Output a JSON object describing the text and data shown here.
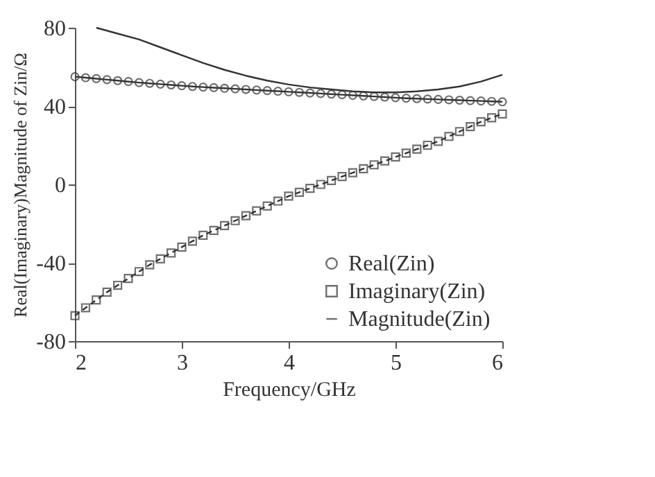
{
  "chart_data": {
    "type": "line",
    "xlabel": "Frequency/GHz",
    "ylabel": "Real(Imaginary)Magnitude of Zin/Ω",
    "xlim": [
      2,
      6
    ],
    "xticks": [
      2,
      3,
      4,
      5,
      6
    ],
    "ylim": [
      -80,
      80
    ],
    "yticks": [
      -80,
      -40,
      0,
      40,
      80
    ],
    "grid": false,
    "legend": "bottom right",
    "series": [
      {
        "name": "Real(Zin)",
        "color": "#333333",
        "marker": "circle",
        "line_style": "solid",
        "x": [
          2.0,
          2.1,
          2.2,
          2.3,
          2.4,
          2.5,
          2.6,
          2.7,
          2.8,
          2.9,
          3.0,
          3.1,
          3.2,
          3.3,
          3.4,
          3.5,
          3.6,
          3.7,
          3.8,
          3.9,
          4.0,
          4.1,
          4.2,
          4.3,
          4.4,
          4.5,
          4.6,
          4.7,
          4.8,
          4.9,
          5.0,
          5.1,
          5.2,
          5.3,
          5.4,
          5.5,
          5.6,
          5.7,
          5.8,
          5.9,
          6.0
        ],
        "values": [
          55,
          54.5,
          54,
          53.5,
          53,
          52.5,
          52,
          51.6,
          51.2,
          50.8,
          50.4,
          50,
          49.7,
          49.4,
          49.1,
          48.8,
          48.5,
          48.2,
          47.9,
          47.6,
          47.3,
          47,
          46.7,
          46.4,
          46.1,
          45.8,
          45.5,
          45.2,
          44.9,
          44.6,
          44.3,
          44,
          43.8,
          43.6,
          43.4,
          43.2,
          43,
          42.8,
          42.6,
          42.4,
          42.2
        ]
      },
      {
        "name": "Imaginary(Zin)",
        "color": "#333333",
        "marker": "square",
        "line_style": "dashed",
        "x": [
          2.0,
          2.1,
          2.2,
          2.3,
          2.4,
          2.5,
          2.6,
          2.7,
          2.8,
          2.9,
          3.0,
          3.1,
          3.2,
          3.3,
          3.4,
          3.5,
          3.6,
          3.7,
          3.8,
          3.9,
          4.0,
          4.1,
          4.2,
          4.3,
          4.4,
          4.5,
          4.6,
          4.7,
          4.8,
          4.9,
          5.0,
          5.1,
          5.2,
          5.3,
          5.4,
          5.5,
          5.6,
          5.7,
          5.8,
          5.9,
          6.0
        ],
        "values": [
          -67,
          -63,
          -59,
          -55,
          -51.5,
          -48,
          -44.5,
          -41,
          -38,
          -35,
          -32,
          -29,
          -26,
          -23.5,
          -21,
          -18.5,
          -16,
          -13.5,
          -11,
          -8.5,
          -6,
          -4,
          -2,
          0,
          2,
          4,
          6,
          8,
          10,
          12,
          14,
          16,
          18,
          20,
          22,
          24.5,
          27,
          29.5,
          32,
          34,
          36
        ]
      },
      {
        "name": "Magnitude(Zin)",
        "color": "#333333",
        "marker": "none",
        "line_style": "solid",
        "x": [
          2.2,
          2.4,
          2.6,
          2.8,
          3.0,
          3.2,
          3.4,
          3.6,
          3.8,
          4.0,
          4.2,
          4.4,
          4.6,
          4.8,
          5.0,
          5.2,
          5.4,
          5.6,
          5.8,
          6.0
        ],
        "values": [
          80,
          77,
          74,
          70,
          66,
          62,
          58.5,
          55.5,
          53,
          51,
          49.5,
          48.5,
          47.5,
          47,
          47,
          47.5,
          48.5,
          50,
          52.5,
          56
        ]
      }
    ]
  }
}
